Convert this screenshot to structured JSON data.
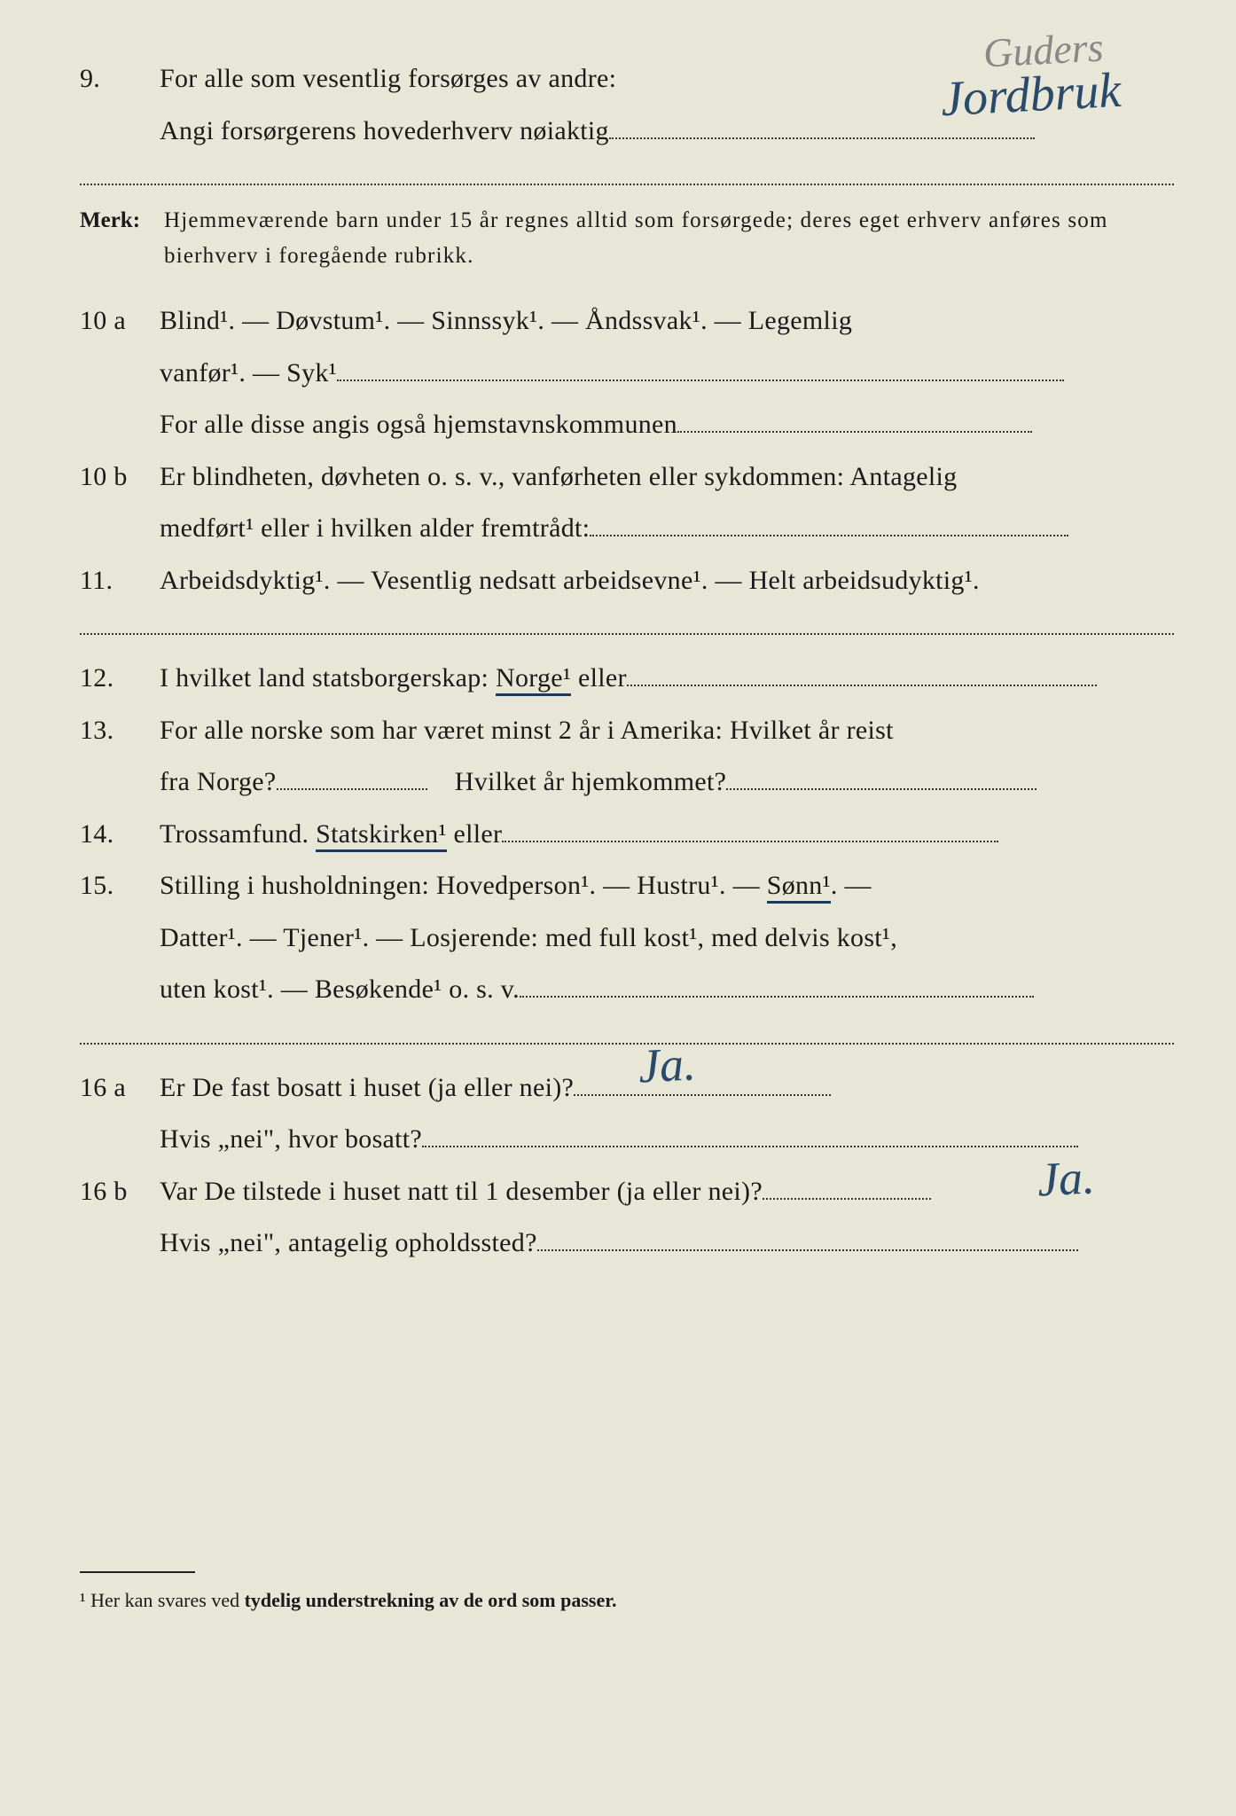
{
  "colors": {
    "paper": "#e8e6d6",
    "ink": "#1a1a1a",
    "handwriting": "#2a4a6a",
    "pencil": "#888888"
  },
  "typography": {
    "body_fontsize": 30,
    "merk_fontsize": 25,
    "footnote_fontsize": 22,
    "handwritten_fontsize": 50,
    "line_height": 1.95
  },
  "handwritten": {
    "top_pencil": "Guders",
    "top_ink": "Jordbruk",
    "ans_16a": "Ja.",
    "ans_16b": "Ja."
  },
  "q9": {
    "num": "9.",
    "line1": "For alle som vesentlig forsørges av andre:",
    "line2_pre": "Angi forsørgerens hovederhverv nøiaktig"
  },
  "merk": {
    "label": "Merk:",
    "text": "Hjemmeværende barn under 15 år regnes alltid som forsørgede; deres eget erhverv anføres som bierhverv i foregående rubrikk."
  },
  "q10a": {
    "num": "10 a",
    "opts": "Blind¹.   —   Døvstum¹.   —   Sinnssyk¹.   —   Åndssvak¹.   —   Legemlig",
    "opts2": "vanfør¹.  —  Syk¹",
    "line3": "For alle disse angis også hjemstavnskommunen"
  },
  "q10b": {
    "num": "10 b",
    "line1": "Er blindheten, døvheten o. s. v., vanførheten eller sykdommen: Antagelig",
    "line2": "medført¹ eller i hvilken alder fremtrådt:"
  },
  "q11": {
    "num": "11.",
    "text": "Arbeidsdyktig¹. — Vesentlig nedsatt arbeidsevne¹. — Helt arbeidsudyktig¹."
  },
  "q12": {
    "num": "12.",
    "pre": "I hvilket land statsborgerskap:  ",
    "underlined": "Norge¹",
    "post": "  eller"
  },
  "q13": {
    "num": "13.",
    "line1": "For alle norske som har været minst 2 år i Amerika:  Hvilket år reist",
    "line2a": "fra Norge?",
    "line2b": "Hvilket år hjemkommet?"
  },
  "q14": {
    "num": "14.",
    "pre": "Trossamfund.   ",
    "underlined": "Statskirken¹",
    "post": " eller"
  },
  "q15": {
    "num": "15.",
    "line1a": "Stilling i husholdningen:   Hovedperson¹.   —   Hustru¹.   —   ",
    "line1_underlined": "Sønn¹",
    "line1b": ".   —",
    "line2": "Datter¹.  —  Tjener¹.  —  Losjerende:  med full kost¹,  med delvis kost¹,",
    "line3": "uten kost¹.   —   Besøkende¹  o. s. v."
  },
  "q16a": {
    "num": "16 a",
    "line1": "Er De fast bosatt i huset (ja eller nei)?",
    "line2": "Hvis „nei\", hvor bosatt?"
  },
  "q16b": {
    "num": "16 b",
    "line1": "Var De tilstede i huset natt til 1 desember (ja eller nei)?",
    "line2": "Hvis „nei\", antagelig opholdssted?"
  },
  "footnote": {
    "marker": "¹",
    "text_pre": "  Her kan svares ved ",
    "text_bold": "tydelig understrekning av de ord som passer.",
    "text_post": ""
  }
}
